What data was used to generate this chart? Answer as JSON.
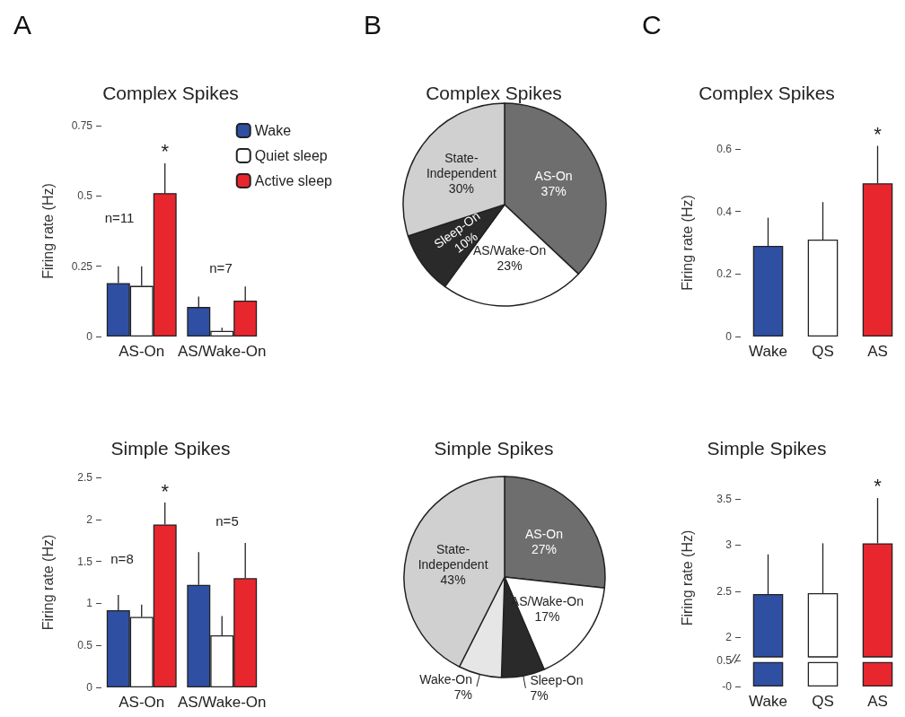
{
  "chart_data": [
    {
      "type": "bar",
      "title": "Complex Spikes",
      "ylabel": "Firing rate (Hz)",
      "categories": [
        "AS-On",
        "AS/Wake-On"
      ],
      "annotations": [
        "A",
        "n=11",
        "n=7"
      ],
      "ylim": [
        0,
        0.75
      ],
      "yticks": [
        0,
        0.25,
        0.5,
        0.75
      ],
      "grid": false,
      "legend": "top right",
      "series": [
        {
          "name": "Wake",
          "color": "#2f4fa3",
          "values": [
            0.19,
            0.105
          ],
          "errors": [
            [
              0.19,
              0.25
            ],
            [
              0.105,
              0.142
            ]
          ]
        },
        {
          "name": "Quiet sleep",
          "color": "#ffffff",
          "values": [
            0.18,
            0.02
          ],
          "errors": [
            [
              0.18,
              0.25
            ],
            [
              0.02,
              0.031
            ]
          ]
        },
        {
          "name": "Active sleep",
          "color": "#e8262e",
          "values": [
            0.51,
            0.128
          ],
          "errors": [
            [
              0.51,
              0.616
            ],
            [
              0.128,
              0.178
            ]
          ],
          "value_labels": [
            "*",
            null
          ]
        }
      ]
    },
    {
      "type": "bar",
      "title": "Simple Spikes",
      "ylabel": "Firing rate (Hz)",
      "categories": [
        "AS-On",
        "AS/Wake-On"
      ],
      "annotations": [
        "n=8",
        "n=5"
      ],
      "ylim": [
        0,
        2.5
      ],
      "yticks": [
        0,
        0.5,
        1,
        1.5,
        2,
        2.5
      ],
      "grid": false,
      "series": [
        {
          "color": "#2f4fa3",
          "values": [
            0.92,
            1.22
          ],
          "errors": [
            [
              0.92,
              1.1
            ],
            [
              1.22,
              1.61
            ]
          ]
        },
        {
          "color": "#ffffff",
          "values": [
            0.84,
            0.62
          ],
          "errors": [
            [
              0.84,
              0.985
            ],
            [
              0.62,
              0.85
            ]
          ]
        },
        {
          "color": "#e8262e",
          "values": [
            1.94,
            1.3
          ],
          "errors": [
            [
              1.94,
              2.2
            ],
            [
              1.3,
              1.72
            ]
          ],
          "value_labels": [
            "*",
            null
          ]
        }
      ]
    },
    {
      "type": "pie",
      "title": "Complex Spikes",
      "annotations": [
        "B"
      ],
      "categories": [
        "AS-On",
        "AS/Wake-On",
        "Sleep-On",
        "State-Independent"
      ],
      "values": [
        37,
        23,
        10,
        30
      ],
      "value_labels": [
        "37%",
        "23%",
        "10%",
        "30%"
      ],
      "colors": [
        "#6e6e6e",
        "#ffffff",
        "#2a2a2a",
        "#d0d0d0"
      ]
    },
    {
      "type": "pie",
      "title": "Simple Spikes",
      "categories": [
        "AS-On",
        "AS/Wake-On",
        "Sleep-On",
        "Wake-On",
        "State-Independent"
      ],
      "values": [
        27,
        17,
        7,
        7,
        43
      ],
      "value_labels": [
        "27%",
        "17%",
        "7%",
        "7%",
        "43%"
      ],
      "colors": [
        "#6e6e6e",
        "#ffffff",
        "#2a2a2a",
        "#e6e6e6",
        "#d0d0d0"
      ]
    },
    {
      "type": "bar",
      "title": "Complex Spikes",
      "ylabel": "Firing rate (Hz)",
      "annotations": [
        "C"
      ],
      "categories": [
        "Wake",
        "QS",
        "AS"
      ],
      "values": [
        0.29,
        0.31,
        0.49
      ],
      "colors": [
        "#2f4fa3",
        "#ffffff",
        "#e8262e"
      ],
      "errors": [
        [
          0.29,
          0.38
        ],
        [
          0.31,
          0.43
        ],
        [
          0.49,
          0.61
        ]
      ],
      "value_labels": [
        null,
        null,
        "*"
      ],
      "ylim": [
        0,
        0.6
      ],
      "yticks": [
        0,
        0.2,
        0.4,
        0.6
      ],
      "grid": false
    },
    {
      "type": "bar",
      "title": "Simple Spikes",
      "ylabel": "Firing rate (Hz)",
      "categories": [
        null,
        null,
        null
      ],
      "values": [
        2.47,
        2.48,
        3.02
      ],
      "colors": [
        "#2f4fa3",
        "#ffffff",
        "#e8262e"
      ],
      "errors": [
        [
          2.47,
          2.9
        ],
        [
          2.48,
          3.02
        ],
        [
          3.02,
          3.51
        ]
      ],
      "value_labels": [
        null,
        null,
        "*"
      ],
      "ylim": [
        1.79,
        3.5
      ],
      "yticks": [
        2,
        2.5,
        3,
        3.5
      ],
      "grid": false,
      "tick_labels": "y"
    },
    {
      "type": "bar",
      "categories": [
        "Wake",
        "QS",
        "AS"
      ],
      "values": [
        0.47,
        0.47,
        0.47
      ],
      "colors": [
        "#2f4fa3",
        "#ffffff",
        "#e8262e"
      ],
      "ylim": [
        0,
        0.5
      ],
      "yticks": [
        {
          "value": 0,
          "label": "-0"
        },
        0.5
      ],
      "grid": false
    }
  ]
}
